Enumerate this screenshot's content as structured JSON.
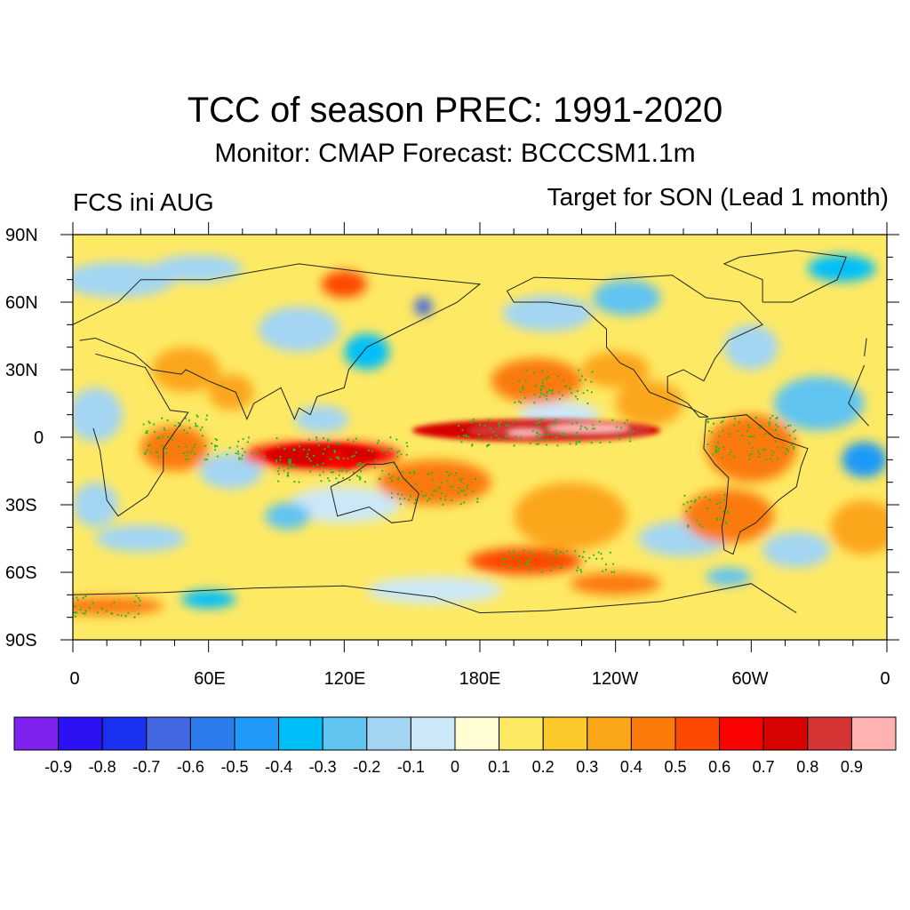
{
  "title": "TCC of season PREC: 1991-2020",
  "subtitle": "Monitor: CMAP   Forecast: BCCCSM1.1m",
  "left_label": "FCS ini AUG",
  "right_label": "Target for SON (Lead 1 month)",
  "lat_labels": [
    "90N",
    "60N",
    "30N",
    "0",
    "30S",
    "60S",
    "90S"
  ],
  "lon_labels": [
    "0",
    "60E",
    "120E",
    "180E",
    "120W",
    "60W",
    "0"
  ],
  "colorbar": {
    "colors": [
      "#7f22f0",
      "#2c11f5",
      "#1a31f0",
      "#4267e0",
      "#2c7cee",
      "#1f9af8",
      "#00bff8",
      "#60c4f0",
      "#a3d5f3",
      "#cce8f8",
      "#fffdd1",
      "#fee964",
      "#fdc829",
      "#fca61a",
      "#fb7a0a",
      "#fc4a04",
      "#fd0202",
      "#d60301",
      "#d43434",
      "#ffb2b2"
    ],
    "labels": [
      "-0.9",
      "-0.8",
      "-0.7",
      "-0.6",
      "-0.5",
      "-0.4",
      "-0.3",
      "-0.2",
      "-0.1",
      "0",
      "0.1",
      "0.2",
      "0.3",
      "0.4",
      "0.5",
      "0.6",
      "0.7",
      "0.8",
      "0.9"
    ]
  },
  "stipple_color": "#22bb22"
}
